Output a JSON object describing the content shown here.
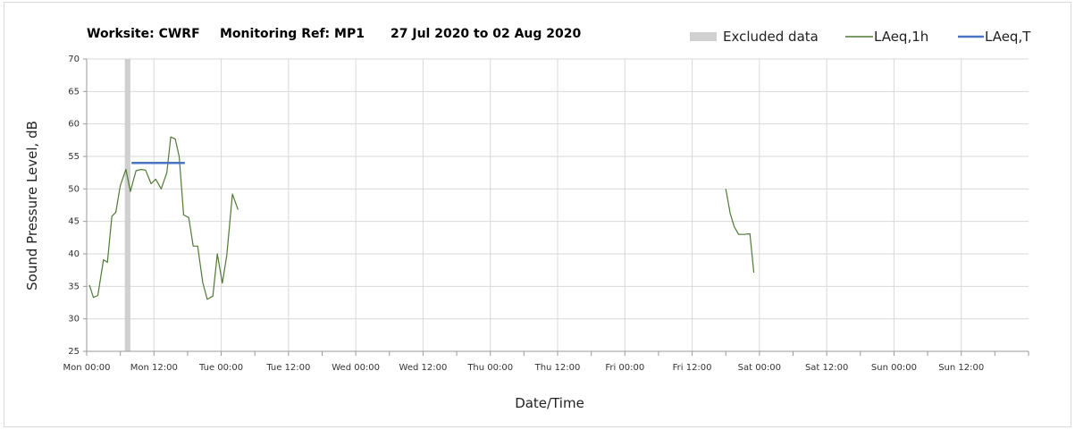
{
  "chart_data": {
    "type": "line",
    "title_parts": [
      "Worksite: CWRF",
      "Monitoring Ref: MP1",
      "27 Jul 2020 to 02 Aug 2020"
    ],
    "xlabel": "Date/Time",
    "ylabel": "Sound Pressure Level, dB",
    "xlim": [
      0,
      168
    ],
    "ylim": [
      25,
      70
    ],
    "yticks": [
      25,
      30,
      35,
      40,
      45,
      50,
      55,
      60,
      65,
      70
    ],
    "xticks": [
      {
        "x": 0,
        "label": "Mon 00:00"
      },
      {
        "x": 12,
        "label": "Mon 12:00"
      },
      {
        "x": 24,
        "label": "Tue 00:00"
      },
      {
        "x": 36,
        "label": "Tue 12:00"
      },
      {
        "x": 48,
        "label": "Wed 00:00"
      },
      {
        "x": 60,
        "label": "Wed 12:00"
      },
      {
        "x": 72,
        "label": "Thu 00:00"
      },
      {
        "x": 84,
        "label": "Thu 12:00"
      },
      {
        "x": 96,
        "label": "Fri 00:00"
      },
      {
        "x": 108,
        "label": "Fri 12:00"
      },
      {
        "x": 120,
        "label": "Sat 00:00"
      },
      {
        "x": 132,
        "label": "Sat 12:00"
      },
      {
        "x": 144,
        "label": "Sun 00:00"
      },
      {
        "x": 156,
        "label": "Sun 12:00"
      }
    ],
    "grid": true,
    "legend_position": "top-right",
    "excluded": {
      "name": "Excluded data",
      "color": "#d0d0d0",
      "x_start": 6.8,
      "x_end": 7.8
    },
    "series": [
      {
        "name": "LAeq,1h",
        "color": "#4e7a34",
        "segments": [
          [
            [
              0.5,
              35.2
            ],
            [
              1.2,
              33.3
            ],
            [
              2,
              33.6
            ],
            [
              3,
              39.1
            ],
            [
              3.7,
              38.7
            ],
            [
              4.5,
              45.8
            ],
            [
              5.2,
              46.4
            ],
            [
              6,
              50.5
            ],
            [
              7,
              53
            ],
            [
              7.8,
              49.6
            ],
            [
              8.8,
              52.8
            ],
            [
              9.7,
              53
            ],
            [
              10.5,
              52.9
            ],
            [
              11.5,
              50.8
            ],
            [
              12.3,
              51.5
            ],
            [
              13.3,
              50
            ],
            [
              14.3,
              52.5
            ],
            [
              15,
              58
            ],
            [
              15.8,
              57.7
            ],
            [
              16.5,
              55
            ],
            [
              17.3,
              46
            ],
            [
              18.2,
              45.6
            ],
            [
              19,
              41.2
            ],
            [
              19.8,
              41.2
            ],
            [
              20.7,
              35.6
            ],
            [
              21.5,
              33
            ],
            [
              22.5,
              33.5
            ],
            [
              23.3,
              40
            ],
            [
              24.2,
              35.5
            ],
            [
              25,
              39.8
            ],
            [
              26,
              49.2
            ],
            [
              27,
              46.8
            ]
          ],
          [
            [
              114,
              50
            ],
            [
              114.8,
              46.2
            ],
            [
              115.5,
              44.2
            ],
            [
              116.3,
              43
            ],
            [
              117.3,
              43
            ],
            [
              118.3,
              43.1
            ],
            [
              119,
              37.1
            ]
          ]
        ]
      },
      {
        "name": "LAeq,T",
        "color": "#4a73c2",
        "segments": [
          [
            [
              8,
              54
            ],
            [
              17.5,
              54
            ]
          ]
        ]
      }
    ]
  }
}
